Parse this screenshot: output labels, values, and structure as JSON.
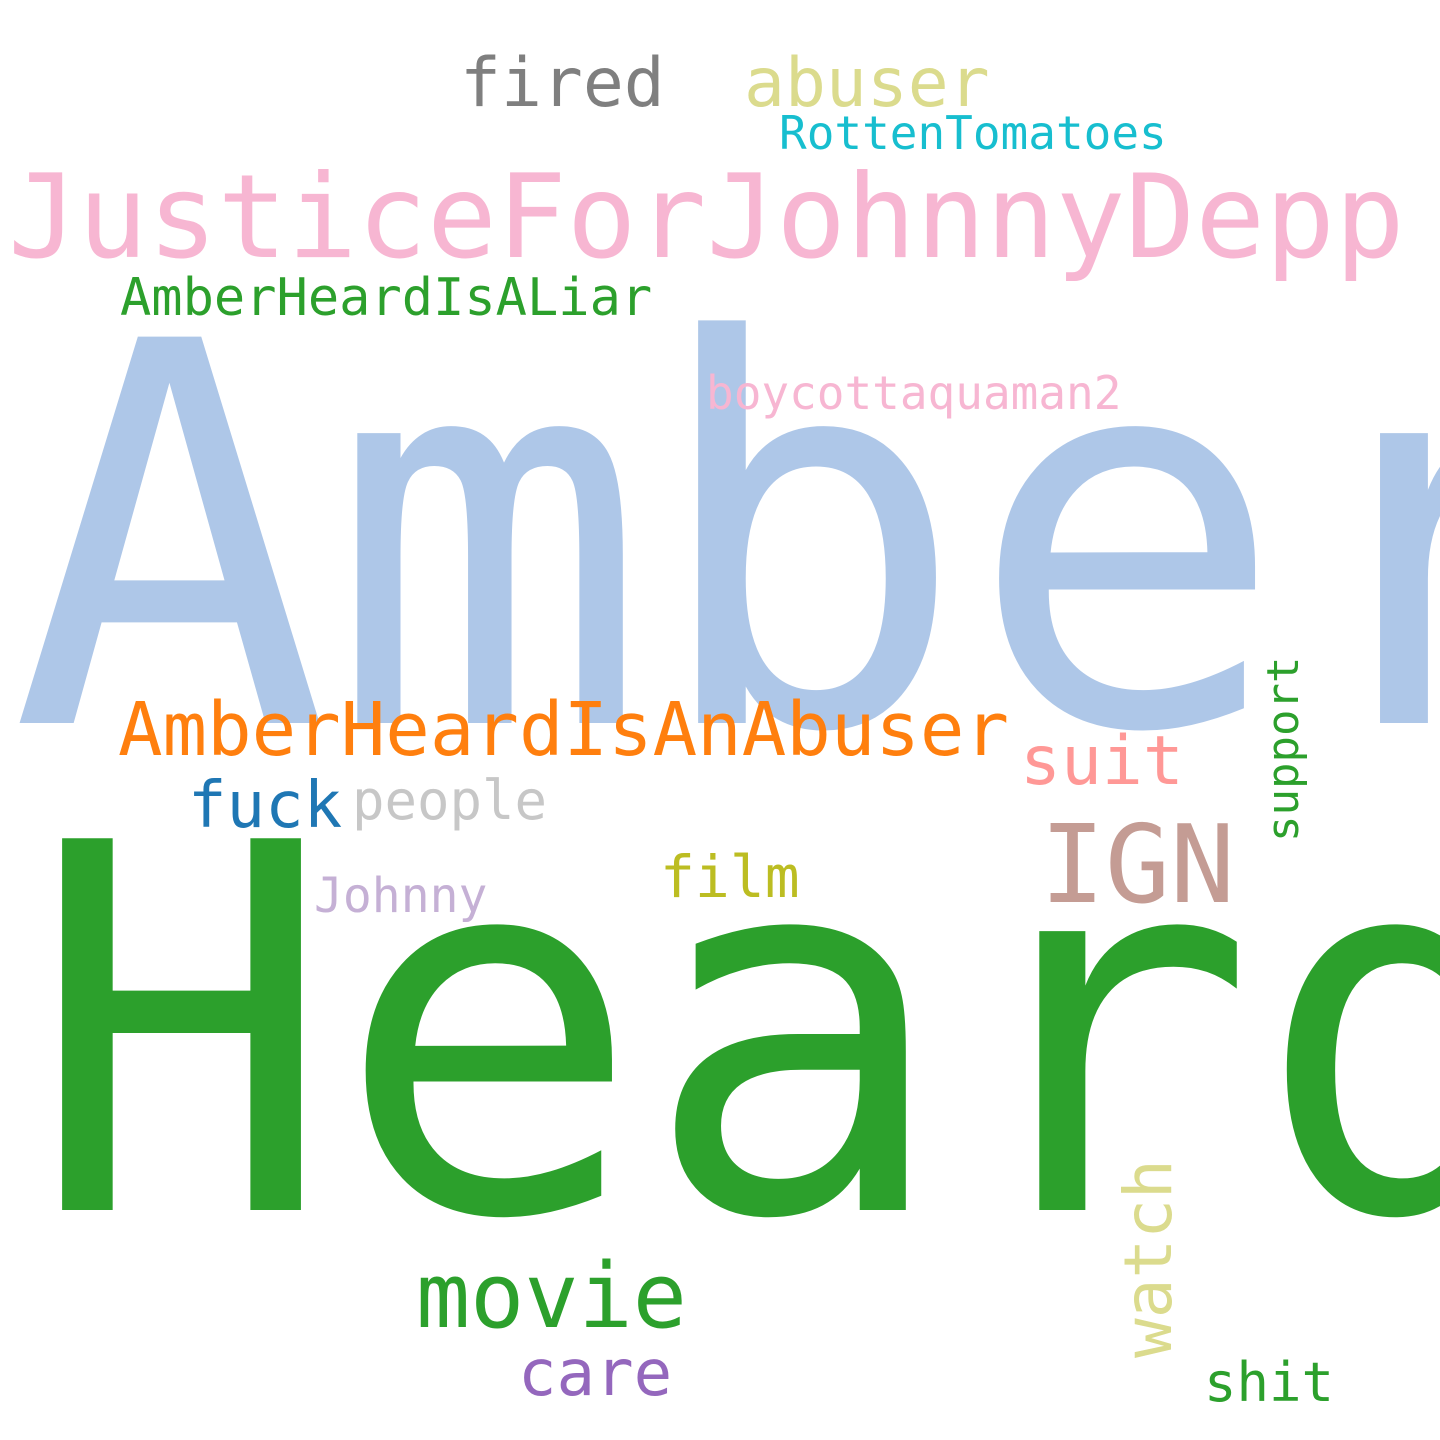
{
  "words": [
    {
      "id": "amber",
      "text": "Amber",
      "color": "#aec7e8"
    },
    {
      "id": "heard",
      "text": "Heard",
      "color": "#2ca02c"
    },
    {
      "id": "justice",
      "text": "JusticeForJohnnyDepp",
      "color": "#f7b6d2"
    },
    {
      "id": "abuser-hashtag",
      "text": "AmberHeardIsAnAbuser",
      "color": "#ff7f0e"
    },
    {
      "id": "liar-hashtag",
      "text": "AmberHeardIsALiar",
      "color": "#2ca02c"
    },
    {
      "id": "fired",
      "text": "fired",
      "color": "#7f7f7f"
    },
    {
      "id": "abuser",
      "text": "abuser",
      "color": "#dbdb8d"
    },
    {
      "id": "rotten",
      "text": "RottenTomatoes",
      "color": "#17becf"
    },
    {
      "id": "boycott",
      "text": "boycottaquaman2",
      "color": "#f7b6d2"
    },
    {
      "id": "ign",
      "text": "IGN",
      "color": "#c49c94"
    },
    {
      "id": "suit",
      "text": "suit",
      "color": "#ff9896"
    },
    {
      "id": "fuck",
      "text": "fuck",
      "color": "#1f77b4"
    },
    {
      "id": "people",
      "text": "people",
      "color": "#c7c7c7"
    },
    {
      "id": "film",
      "text": "film",
      "color": "#bcbd22"
    },
    {
      "id": "johnny",
      "text": "Johnny",
      "color": "#c5b0d5"
    },
    {
      "id": "movie",
      "text": "movie",
      "color": "#2ca02c"
    },
    {
      "id": "watch",
      "text": "watch",
      "color": "#dbdb8d"
    },
    {
      "id": "support",
      "text": "support",
      "color": "#2ca02c"
    },
    {
      "id": "care",
      "text": "care",
      "color": "#9467bd"
    },
    {
      "id": "shit",
      "text": "shit",
      "color": "#2ca02c"
    }
  ]
}
